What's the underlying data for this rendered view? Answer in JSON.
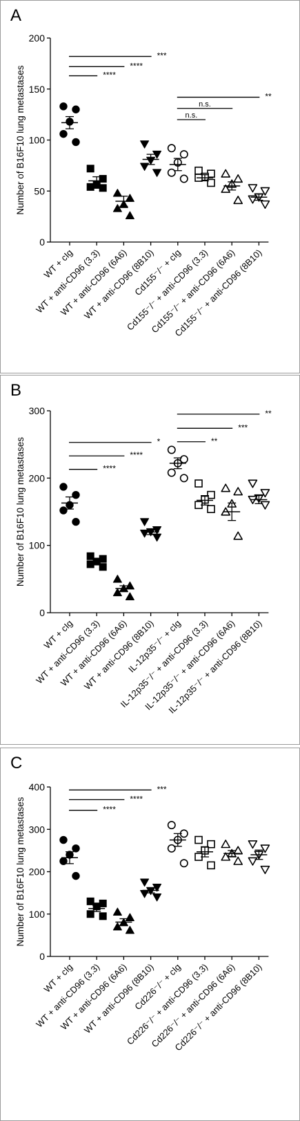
{
  "chart_data": [
    {
      "panel_label": "A",
      "type": "scatter",
      "ylabel": "Number of B16F10 lung metastases",
      "ylim": [
        0,
        200
      ],
      "yticks": [
        0,
        50,
        100,
        150,
        200
      ],
      "categories": [
        "WT + cIg",
        "WT + anti-CD96 (3.3)",
        "WT + anti-CD96 (6A6)",
        "WT + anti-CD96 (8B10)",
        "Cd155⁻/⁻ + cIg",
        "Cd155⁻/⁻ + anti-CD96 (3.3)",
        "Cd155⁻/⁻ + anti-CD96 (6A6)",
        "Cd155⁻/⁻ + anti-CD96 (8B10)"
      ],
      "markers": [
        "circle-filled",
        "square-filled",
        "triangle-filled",
        "triangle-down-filled",
        "circle-open",
        "square-open",
        "triangle-open",
        "triangle-down-open"
      ],
      "series": [
        {
          "points": [
            133,
            130,
            118,
            106,
            98
          ],
          "mean": 117,
          "sem": 6
        },
        {
          "points": [
            72,
            62,
            56,
            54,
            53
          ],
          "mean": 60,
          "sem": 4
        },
        {
          "points": [
            48,
            43,
            37,
            33,
            26
          ],
          "mean": 40,
          "sem": 5
        },
        {
          "points": [
            96,
            86,
            80,
            74,
            68
          ],
          "mean": 81,
          "sem": 5
        },
        {
          "points": [
            92,
            86,
            78,
            68,
            62
          ],
          "mean": 76,
          "sem": 6
        },
        {
          "points": [
            70,
            67,
            64,
            63,
            58
          ],
          "mean": 63,
          "sem": 3
        },
        {
          "points": [
            67,
            62,
            57,
            52,
            41
          ],
          "mean": 55,
          "sem": 4
        },
        {
          "points": [
            53,
            50,
            44,
            42,
            37
          ],
          "mean": 44,
          "sem": 3
        }
      ],
      "comparisons": [
        {
          "from": 0,
          "to": 3,
          "y": 182,
          "label": "***"
        },
        {
          "from": 0,
          "to": 2,
          "y": 172,
          "label": "****"
        },
        {
          "from": 0,
          "to": 1,
          "y": 163,
          "label": "****"
        },
        {
          "from": 4,
          "to": 7,
          "y": 142,
          "label": "**"
        },
        {
          "from": 4,
          "to": 6,
          "y": 131,
          "label": "n.s."
        },
        {
          "from": 4,
          "to": 5,
          "y": 120,
          "label": "n.s."
        }
      ]
    },
    {
      "panel_label": "B",
      "type": "scatter",
      "ylabel": "Number of B16F10 lung metastases",
      "ylim": [
        0,
        300
      ],
      "yticks": [
        0,
        100,
        200,
        300
      ],
      "categories": [
        "WT + cIg",
        "WT + anti-CD96 (3.3)",
        "WT + anti-CD96 (6A6)",
        "WT + anti-CD96 (8B10)",
        "IL-12p35⁻/⁻ + cIg",
        "IL-12p35⁻/⁻ + anti-CD96 (3.3)",
        "IL-12p35⁻/⁻ + anti-CD96 (6A6)",
        "IL-12p35⁻/⁻ + anti-CD96 (8B10)"
      ],
      "markers": [
        "circle-filled",
        "square-filled",
        "triangle-filled",
        "triangle-down-filled",
        "circle-open",
        "square-open",
        "triangle-open",
        "triangle-down-open"
      ],
      "series": [
        {
          "points": [
            187,
            175,
            160,
            152,
            135
          ],
          "mean": 163,
          "sem": 9
        },
        {
          "points": [
            84,
            80,
            76,
            72,
            68
          ],
          "mean": 76,
          "sem": 3
        },
        {
          "points": [
            50,
            40,
            36,
            30,
            24
          ],
          "mean": 36,
          "sem": 4
        },
        {
          "points": [
            135,
            123,
            120,
            118,
            112
          ],
          "mean": 120,
          "sem": 4
        },
        {
          "points": [
            242,
            228,
            222,
            208,
            200
          ],
          "mean": 222,
          "sem": 8
        },
        {
          "points": [
            192,
            175,
            168,
            160,
            154
          ],
          "mean": 167,
          "sem": 7
        },
        {
          "points": [
            185,
            180,
            162,
            150,
            114
          ],
          "mean": 150,
          "sem": 13
        },
        {
          "points": [
            192,
            178,
            170,
            168,
            160
          ],
          "mean": 168,
          "sem": 6
        }
      ],
      "comparisons": [
        {
          "from": 0,
          "to": 3,
          "y": 253,
          "label": "*"
        },
        {
          "from": 0,
          "to": 2,
          "y": 233,
          "label": "****"
        },
        {
          "from": 0,
          "to": 1,
          "y": 213,
          "label": "****"
        },
        {
          "from": 4,
          "to": 7,
          "y": 295,
          "label": "**"
        },
        {
          "from": 4,
          "to": 6,
          "y": 274,
          "label": "***"
        },
        {
          "from": 4,
          "to": 5,
          "y": 254,
          "label": "**"
        }
      ]
    },
    {
      "panel_label": "C",
      "type": "scatter",
      "ylabel": "Number of B16F10 lung metastases",
      "ylim": [
        0,
        400
      ],
      "yticks": [
        0,
        100,
        200,
        300,
        400
      ],
      "categories": [
        "WT + cIg",
        "WT + anti-CD96 (3.3)",
        "WT + anti-CD96 (6A6)",
        "WT + anti-CD96 (8B10)",
        "Cd226⁻/⁻ + cIg",
        "Cd226⁻/⁻ + anti-CD96 (3.3)",
        "Cd226⁻/⁻ + anti-CD96 (6A6)",
        "Cd226⁻/⁻ + anti-CD96 (8B10)"
      ],
      "markers": [
        "circle-filled",
        "square-filled",
        "triangle-filled",
        "triangle-down-filled",
        "circle-open",
        "square-open",
        "triangle-open",
        "triangle-down-open"
      ],
      "series": [
        {
          "points": [
            275,
            255,
            240,
            225,
            190
          ],
          "mean": 233,
          "sem": 14
        },
        {
          "points": [
            130,
            125,
            118,
            100,
            95
          ],
          "mean": 113,
          "sem": 7
        },
        {
          "points": [
            105,
            92,
            80,
            70,
            62
          ],
          "mean": 81,
          "sem": 8
        },
        {
          "points": [
            175,
            163,
            155,
            148,
            140
          ],
          "mean": 156,
          "sem": 6
        },
        {
          "points": [
            310,
            290,
            275,
            255,
            220
          ],
          "mean": 275,
          "sem": 15
        },
        {
          "points": [
            275,
            265,
            250,
            235,
            215
          ],
          "mean": 247,
          "sem": 12
        },
        {
          "points": [
            265,
            250,
            243,
            235,
            225
          ],
          "mean": 243,
          "sem": 7
        },
        {
          "points": [
            265,
            255,
            240,
            225,
            205
          ],
          "mean": 240,
          "sem": 11
        }
      ],
      "comparisons": [
        {
          "from": 0,
          "to": 3,
          "y": 393,
          "label": "***"
        },
        {
          "from": 0,
          "to": 2,
          "y": 370,
          "label": "****"
        },
        {
          "from": 0,
          "to": 1,
          "y": 345,
          "label": "****"
        }
      ]
    }
  ]
}
